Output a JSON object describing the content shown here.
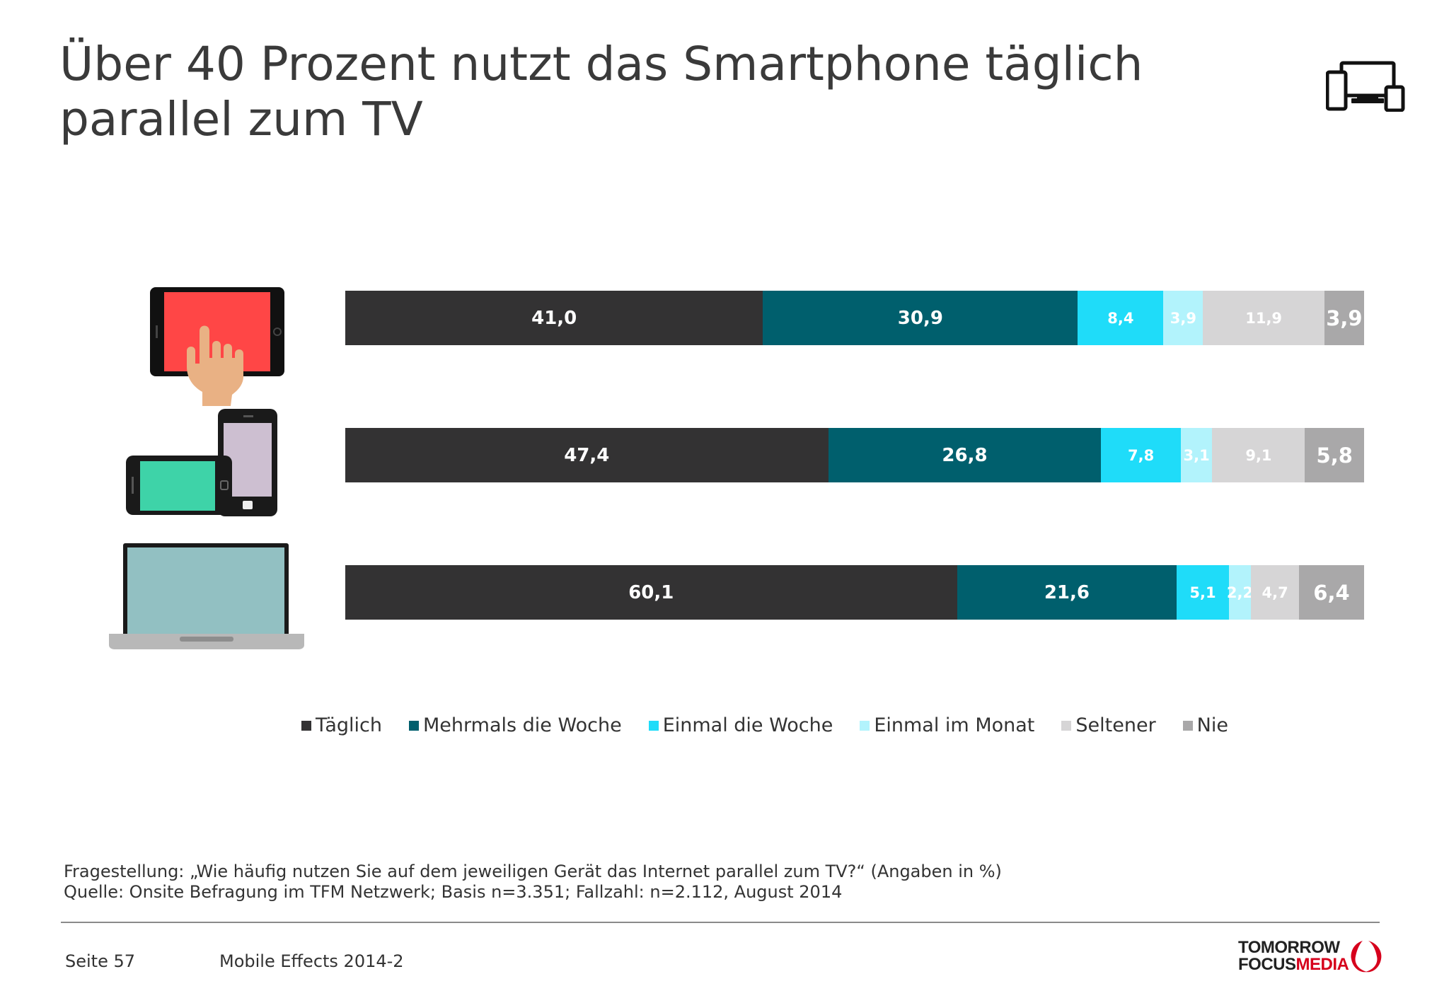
{
  "title": {
    "line1": "Über 40 Prozent nutzt das Smartphone täglich",
    "line2": "parallel zum TV"
  },
  "icons": {
    "header": "multi-device-icon",
    "rows": [
      "tablet-touch-icon",
      "smartphone-pair-icon",
      "laptop-icon"
    ]
  },
  "chart_data": {
    "type": "bar",
    "orientation": "horizontal",
    "stacked": true,
    "xlim": [
      0,
      100
    ],
    "grid": false,
    "legend_position": "bottom",
    "categories": [
      "Tablet",
      "Smartphone",
      "Laptop"
    ],
    "series": [
      {
        "name": "Täglich",
        "color": "#333233",
        "values": [
          41.0,
          47.4,
          60.1
        ],
        "labels": [
          "41,0",
          "47,4",
          "60,1"
        ]
      },
      {
        "name": "Mehrmals die Woche",
        "color": "#005f6d",
        "values": [
          30.9,
          26.8,
          21.6
        ],
        "labels": [
          "30,9",
          "26,8",
          "21,6"
        ]
      },
      {
        "name": "Einmal die Woche",
        "color": "#1fdcf9",
        "values": [
          8.4,
          7.8,
          5.1
        ],
        "labels": [
          "8,4",
          "7,8",
          "5,1"
        ]
      },
      {
        "name": "Einmal im Monat",
        "color": "#b2f3fc",
        "values": [
          3.9,
          3.1,
          2.2
        ],
        "labels": [
          "3,9",
          "3,1",
          "2,2"
        ]
      },
      {
        "name": "Seltener",
        "color": "#d6d5d6",
        "values": [
          11.9,
          9.1,
          4.7
        ],
        "labels": [
          "11,9",
          "9,1",
          "4,7"
        ]
      },
      {
        "name": "Nie",
        "color": "#a9a8a9",
        "values": [
          3.9,
          5.8,
          6.4
        ],
        "labels": [
          "3,9",
          "5,8",
          "6,4"
        ]
      }
    ]
  },
  "footnote": {
    "question": "Fragestellung: „Wie häufig nutzen Sie auf dem jeweiligen Gerät das Internet parallel zum TV?“ (Angaben in %)",
    "source": "Quelle: Onsite Befragung im TFM Netzwerk; Basis n=3.351; Fallzahl: n=2.112, August 2014"
  },
  "footer": {
    "page": "Seite 57",
    "report": "Mobile Effects 2014-2",
    "logo_line1": "TOMORROW",
    "logo_line2a": "FOCUS",
    "logo_line2b": "MEDIA"
  }
}
